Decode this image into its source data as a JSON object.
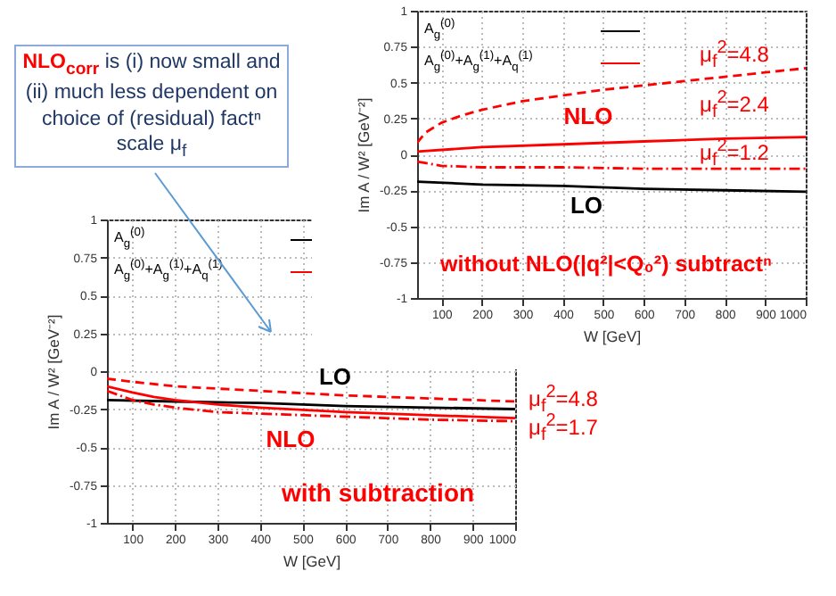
{
  "chart_data": [
    {
      "type": "line",
      "xlabel": "W [GeV]",
      "ylabel": "Im A / W² [GeV⁻²]",
      "xlim": [
        40,
        1000
      ],
      "ylim": [
        -1,
        1
      ],
      "xticks": [
        100,
        200,
        300,
        400,
        500,
        600,
        700,
        800,
        900,
        1000
      ],
      "yticks": [
        -1,
        -0.75,
        -0.5,
        -0.25,
        0,
        0.25,
        0.5,
        0.75,
        1
      ],
      "grid": true,
      "legend": "top left",
      "series": [
        {
          "name": "A$_{g}$$^{(0)}$",
          "color": "#000000",
          "line_style": "solid",
          "x": [
            40,
            200,
            400,
            600,
            800,
            1000
          ],
          "values": [
            -0.19,
            -0.21,
            -0.22,
            -0.24,
            -0.25,
            -0.26
          ]
        },
        {
          "name": "A$_{g}$$^{(0)}$+A$_{g}$$^{(1)}$+A$_{q}$$^{(1)}$",
          "color": "#ff0000",
          "line_style": "solid",
          "x": [
            40,
            200,
            400,
            600,
            800,
            1000
          ],
          "values": [
            0.02,
            0.05,
            0.07,
            0.09,
            0.11,
            0.12
          ]
        },
        {
          "color": "#ff0000",
          "line_style": "dashed",
          "x": [
            40,
            60,
            100,
            150,
            200,
            300,
            400,
            500,
            600,
            700,
            800,
            900,
            1000
          ],
          "values": [
            0.08,
            0.15,
            0.22,
            0.27,
            0.31,
            0.37,
            0.41,
            0.45,
            0.48,
            0.51,
            0.54,
            0.57,
            0.6
          ]
        },
        {
          "color": "#ff0000",
          "line_style": "dotted",
          "x": [
            40,
            100,
            200,
            400,
            600,
            800,
            1000
          ],
          "values": [
            -0.05,
            -0.08,
            -0.09,
            -0.09,
            -0.1,
            -0.1,
            -0.1
          ]
        }
      ],
      "annotations": [
        "LO",
        "NLO",
        "μ$_{f}$$^{2}$=4.8",
        "μ$_{f}$$^{2}$=2.4",
        "μ$_{f}$$^{2}$=1.2",
        "without NLO(|q²|<Q₀²) subtractⁿ"
      ]
    },
    {
      "type": "line",
      "xlabel": "W [GeV]",
      "ylabel": "Im A / W² [GeV⁻²]",
      "xlim": [
        40,
        1000
      ],
      "ylim": [
        -1,
        1
      ],
      "xticks": [
        100,
        200,
        300,
        400,
        500,
        600,
        700,
        800,
        900,
        1000
      ],
      "yticks": [
        -1,
        -0.75,
        -0.5,
        -0.25,
        0,
        0.25,
        0.5,
        0.75,
        1
      ],
      "grid": true,
      "legend": "top left",
      "series": [
        {
          "name": "A$_{g}$$^{(0)}$",
          "color": "#000000",
          "line_style": "solid",
          "x": [
            40,
            200,
            400,
            600,
            800,
            1000
          ],
          "values": [
            -0.19,
            -0.2,
            -0.21,
            -0.23,
            -0.24,
            -0.25
          ]
        },
        {
          "name": "A$_{g}$$^{(0)}$+A$_{g}$$^{(1)}$+A$_{q}$$^{(1)}$",
          "color": "#ff0000",
          "line_style": "solid",
          "x": [
            40,
            100,
            150,
            200,
            300,
            400,
            600,
            800,
            1000
          ],
          "values": [
            -0.1,
            -0.14,
            -0.17,
            -0.19,
            -0.22,
            -0.24,
            -0.27,
            -0.29,
            -0.31
          ]
        },
        {
          "color": "#ff0000",
          "line_style": "dashed",
          "x": [
            40,
            100,
            200,
            400,
            600,
            800,
            1000
          ],
          "values": [
            -0.05,
            -0.07,
            -0.1,
            -0.13,
            -0.16,
            -0.18,
            -0.2
          ]
        },
        {
          "color": "#ff0000",
          "line_style": "dotted",
          "x": [
            40,
            100,
            150,
            200,
            300,
            400,
            600,
            800,
            1000
          ],
          "values": [
            -0.13,
            -0.19,
            -0.22,
            -0.24,
            -0.27,
            -0.28,
            -0.3,
            -0.32,
            -0.33
          ]
        }
      ],
      "annotations": [
        "NLO$_{corr}$",
        " is (i) now small and (ii) much less dependent on choice of (residual) factⁿ scale μ$_{f}$",
        "LO",
        "NLO",
        "μ$_{f}$$^{2}$=4.8",
        "μ$_{f}$$^{2}$=1.7",
        "with subtraction"
      ]
    }
  ]
}
